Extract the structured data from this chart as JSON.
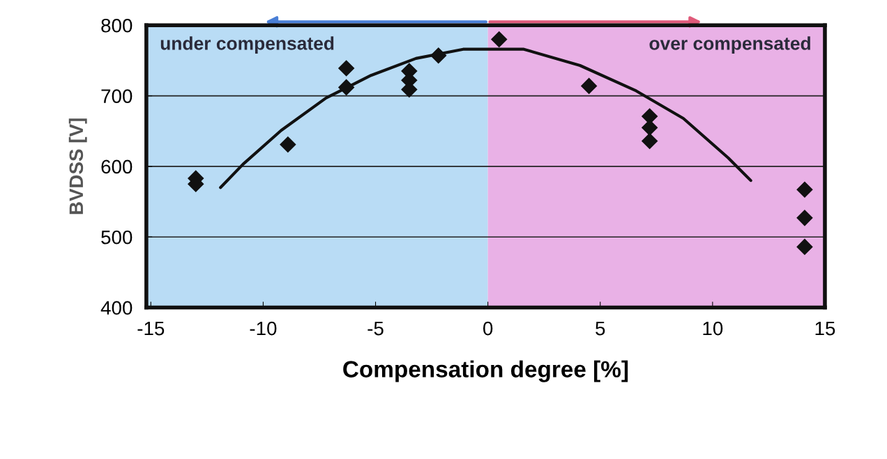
{
  "chart_data": {
    "type": "scatter",
    "xlabel": "Compensation degree [%]",
    "ylabel": "BVDSS [V]",
    "xlim": [
      -15.2,
      15
    ],
    "ylim": [
      400,
      800
    ],
    "xticks": [
      -15,
      -10,
      -5,
      0,
      5,
      10,
      15
    ],
    "yticks": [
      400,
      500,
      600,
      700,
      800
    ],
    "grid": "y",
    "legend": false,
    "bands": [
      {
        "axis": "x",
        "from": -15.2,
        "to": 0,
        "label": "under compensated",
        "color": "#b9dcf5"
      },
      {
        "axis": "x",
        "from": 0,
        "to": 15,
        "label": "over compensated",
        "color": "#e9b1e6"
      }
    ],
    "series": [
      {
        "marker": "diamond",
        "color": "#111111",
        "x": [
          -13.0,
          -13.0,
          -8.9,
          -6.3,
          -6.3,
          -3.5,
          -3.5,
          -3.5,
          -2.2,
          0.5,
          4.5,
          7.2,
          7.2,
          7.2,
          14.1,
          14.1,
          14.1
        ],
        "values": [
          583,
          575,
          631,
          739,
          712,
          735,
          722,
          709,
          757,
          780,
          714,
          671,
          655,
          636,
          567,
          527,
          486
        ]
      },
      {
        "type": "line",
        "marker": "none",
        "line_style": "solid",
        "color": "#111111",
        "x": [
          -11.9,
          -10.9,
          -9.2,
          -7.2,
          -5.2,
          -3.2,
          -1.1,
          1.6,
          4.1,
          6.6,
          8.7,
          10.7,
          11.7
        ],
        "values": [
          570,
          603,
          651,
          697,
          729,
          753,
          766,
          766,
          743,
          707,
          668,
          612,
          580
        ]
      }
    ]
  }
}
